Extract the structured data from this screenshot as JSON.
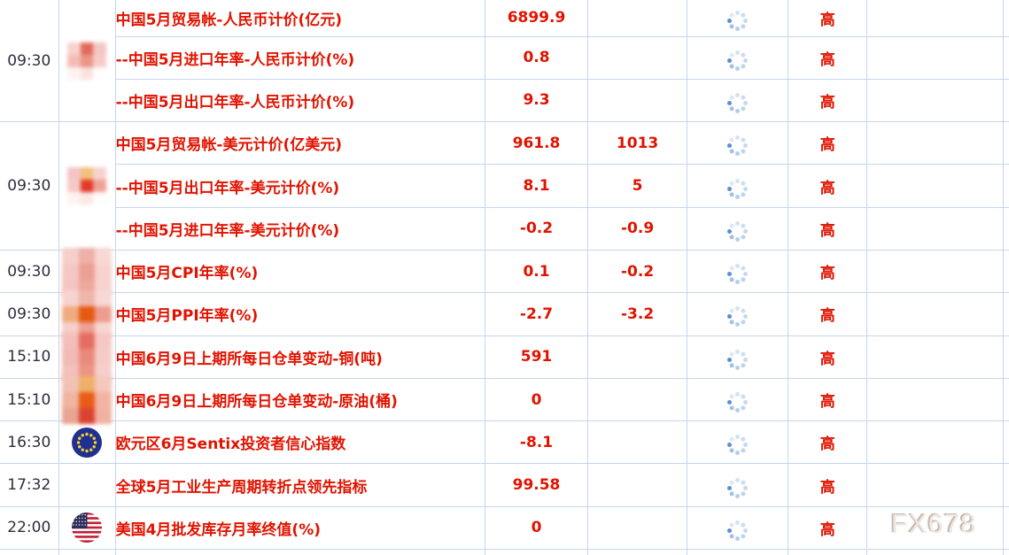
{
  "watermark": "FX678",
  "colors": {
    "red": "#e11300",
    "grid": "#c4d6f0",
    "time_text": "#2d2d3f",
    "spinner_accent": "#5b8fd3",
    "spinner_dot": "#c6d8ef",
    "eu_blue": "#203090",
    "eu_star": "#f8d12e",
    "us_red": "#bf2034",
    "us_blue": "#2e2d5c",
    "watermark_gray": "#eae8e6"
  },
  "rows": [
    {
      "time": "09:30",
      "time_rowspan": 3,
      "flag": {
        "name": "china-flag-blurred",
        "type": "china-pixelated",
        "size": "md",
        "pixels": [
          [
            "#f7d2ce",
            "#e3695e",
            "#f4c6c2"
          ],
          [
            "#f3bcb6",
            "#eb9487",
            "#f6ccc8"
          ],
          [
            "#fdf4f2",
            "#f9e3df",
            "#fffdfd"
          ]
        ]
      },
      "event": "中国5月贸易帐-人民币计价(亿元)",
      "actual": "6899.9",
      "forecast": "",
      "importance": "高"
    },
    {
      "event": "--中国5月进口年率-人民币计价(%)",
      "actual": "0.8",
      "forecast": "",
      "importance": "高"
    },
    {
      "event": "--中国5月出口年率-人民币计价(%)",
      "actual": "9.3",
      "forecast": "",
      "importance": "高"
    },
    {
      "time": "09:30",
      "time_rowspan": 3,
      "flag": {
        "name": "china-flag-blurred",
        "type": "china-pixelated",
        "size": "md",
        "pixels": [
          [
            "#f4c3c7",
            "#f2c07c",
            "#f7d2ce"
          ],
          [
            "#f5cac6",
            "#e23928",
            "#efa196"
          ],
          [
            "#fdf3f1",
            "#fae8e5",
            "#fffcfc"
          ]
        ]
      },
      "event": "中国5月贸易帐-美元计价(亿美元)",
      "actual": "961.8",
      "forecast": "1013",
      "importance": "高"
    },
    {
      "event": "--中国5月出口年率-美元计价(%)",
      "actual": "8.1",
      "forecast": "5",
      "importance": "高"
    },
    {
      "event": "--中国5月进口年率-美元计价(%)",
      "actual": "-0.2",
      "forecast": "-0.9",
      "importance": "高"
    },
    {
      "time": "09:30",
      "flag": {
        "name": "china-flag-blurred",
        "type": "china-pixelated",
        "size": "lg",
        "pixels": [
          [
            "#f6cfcb",
            "#eeb0a7",
            "#f8d8d4"
          ],
          [
            "#f5c7c3",
            "#eca094",
            "#f7d2ce"
          ],
          [
            "#f4c5c1",
            "#eda89b",
            "#f7d3cf"
          ]
        ]
      },
      "event": "中国5月CPI年率(%)",
      "actual": "0.1",
      "forecast": "-0.2",
      "importance": "高"
    },
    {
      "time": "09:30",
      "flag": {
        "name": "china-flag-blurred",
        "type": "china-pixelated",
        "size": "lg",
        "pixels": [
          [
            "#f7d3cf",
            "#efb5ac",
            "#f8d8d4"
          ],
          [
            "#f0ab7e",
            "#e55a10",
            "#ee9c8e"
          ],
          [
            "#f6cfcb",
            "#eda193",
            "#f8d6d2"
          ]
        ]
      },
      "event": "中国5月PPI年率(%)",
      "actual": "-2.7",
      "forecast": "-3.2",
      "importance": "高"
    },
    {
      "time": "15:10",
      "flag": {
        "name": "china-flag-blurred",
        "type": "china-pixelated",
        "size": "lg",
        "pixels": [
          [
            "#f3beb9",
            "#e56d61",
            "#f5c8c4"
          ],
          [
            "#f2bab5",
            "#ea8a7b",
            "#f5cbc7"
          ],
          [
            "#f3c0bb",
            "#ec9486",
            "#f6cfcb"
          ]
        ]
      },
      "event": "中国6月9日上期所每日仓单变动-铜(吨)",
      "actual": "591",
      "forecast": "",
      "importance": "高"
    },
    {
      "time": "15:10",
      "flag": {
        "name": "china-flag-blurred",
        "type": "china-pixelated",
        "size": "lg",
        "pixels": [
          [
            "#f1c2b4",
            "#eeb067",
            "#f4c8bd"
          ],
          [
            "#f0b4a0",
            "#ea5b17",
            "#f2b3a4"
          ],
          [
            "#e9a492",
            "#da4330",
            "#f0b1a2"
          ]
        ]
      },
      "event": "中国6月9日上期所每日仓单变动-原油(桶)",
      "actual": "0",
      "forecast": "",
      "importance": "高"
    },
    {
      "time": "16:30",
      "flag": {
        "name": "eu-flag",
        "type": "eu"
      },
      "event": "欧元区6月Sentix投资者信心指数",
      "actual": "-8.1",
      "forecast": "",
      "importance": "高"
    },
    {
      "time": "17:32",
      "flag": null,
      "event": "全球5月工业生产周期转折点领先指标",
      "actual": "99.58",
      "forecast": "",
      "importance": "高"
    },
    {
      "time": "22:00",
      "flag": {
        "name": "us-flag",
        "type": "us"
      },
      "event": "美国4月批发库存月率终值(%)",
      "actual": "0",
      "forecast": "",
      "importance": "高"
    }
  ]
}
